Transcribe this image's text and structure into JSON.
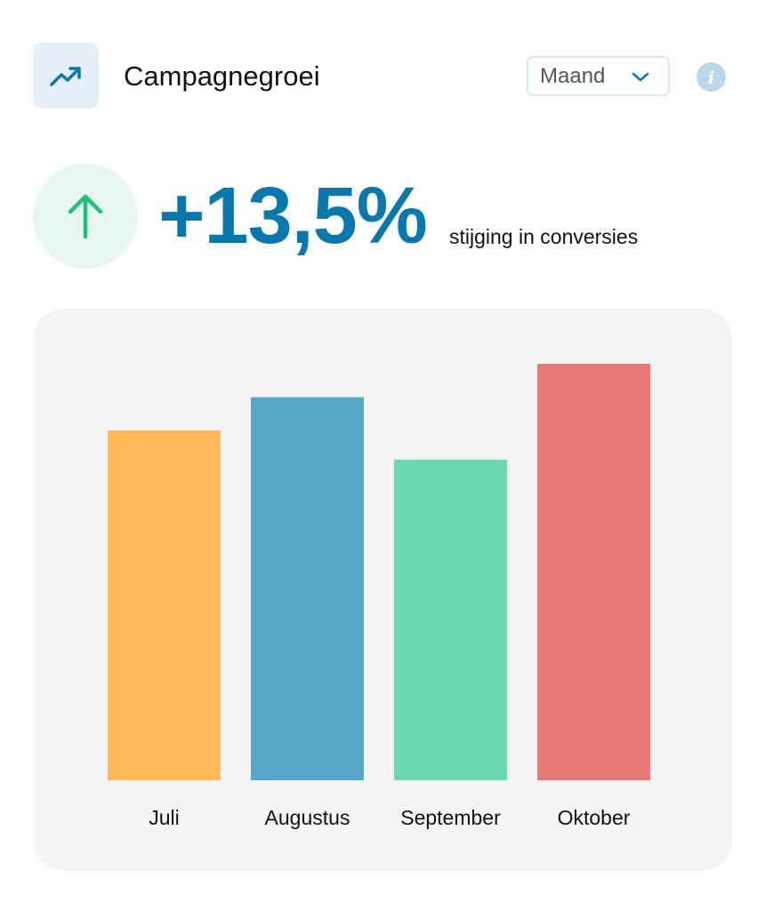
{
  "header": {
    "icon": "trending-up-icon",
    "title": "Campagnegroei",
    "period_select": {
      "value": "Maand",
      "icon": "chevron-down-icon"
    },
    "info_icon": "info-icon"
  },
  "kpi": {
    "icon": "arrow-up-icon",
    "value": "+13,5%",
    "caption": "stijging in conversies",
    "color": "#0b78ac",
    "icon_color": "#22c17a"
  },
  "chart_data": {
    "type": "bar",
    "categories": [
      "Juli",
      "Augustus",
      "September",
      "Oktober"
    ],
    "values": [
      84,
      92,
      77,
      100
    ],
    "ylim": [
      0,
      100
    ],
    "colors": [
      "#ffb95a",
      "#58a7ca",
      "#68d8ae",
      "#e87777"
    ],
    "grid": false,
    "legend": "none"
  }
}
